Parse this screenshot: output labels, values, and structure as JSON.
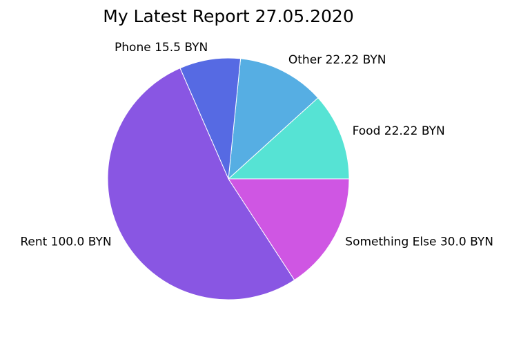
{
  "chart_data": {
    "type": "pie",
    "title": "My Latest Report 27.05.2020",
    "start_angle_deg": 0,
    "direction": "counterclockwise",
    "slices": [
      {
        "label": "Food 22.22 BYN",
        "value": 22.22,
        "color": "#56e3d4"
      },
      {
        "label": "Other 22.22 BYN",
        "value": 22.22,
        "color": "#56aee3"
      },
      {
        "label": "Phone 15.5 BYN",
        "value": 15.5,
        "color": "#566ae3"
      },
      {
        "label": "Rent 100.0 BYN",
        "value": 100.0,
        "color": "#8956e3"
      },
      {
        "label": "Something Else 30.0 BYN",
        "value": 30.0,
        "color": "#cf56e3"
      }
    ],
    "edge_color": "#ffffff"
  }
}
